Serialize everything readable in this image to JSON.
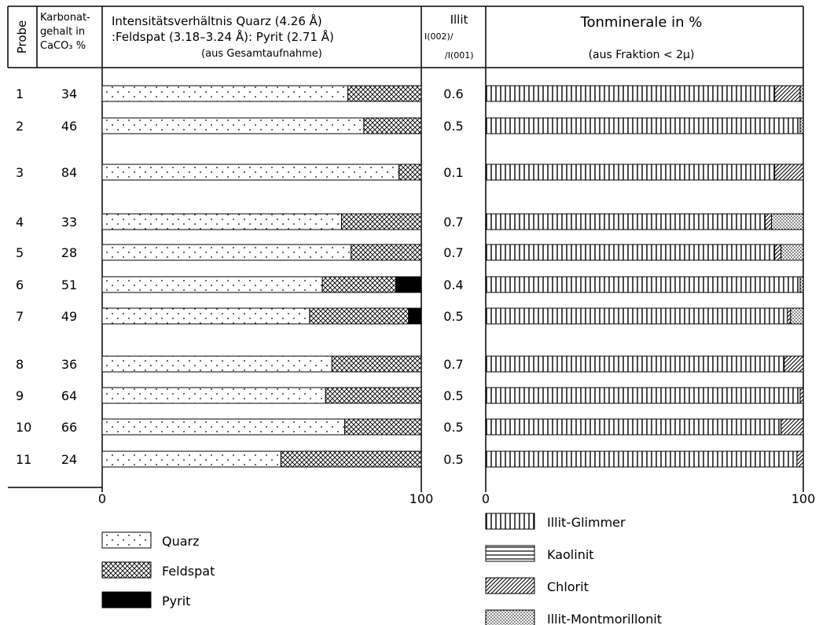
{
  "header": {
    "probe": "Probe",
    "karbonat": [
      "Karbonat-",
      "gehalt in",
      "CaCO₃ %"
    ],
    "intensity": [
      "Intensitätsverhältnis Quarz (4.26 Å)",
      ":Feldspat (3.18–3.24 Å): Pyrit (2.71 Å)",
      "(aus Gesamtaufnahme)"
    ],
    "illit_title": "Illit",
    "illit_num": "I(002)/",
    "illit_den": "/I(001)",
    "ton_title": "Tonminerale in %",
    "ton_sub": "(aus Fraktion < 2µ)"
  },
  "axis": {
    "left_ticks": [
      "0",
      "100"
    ],
    "right_ticks": [
      "0",
      "100"
    ]
  },
  "legend_left": [
    {
      "key": "quarz",
      "label": "Quarz"
    },
    {
      "key": "feldspat",
      "label": "Feldspat"
    },
    {
      "key": "pyrit",
      "label": "Pyrit"
    }
  ],
  "legend_right": [
    {
      "key": "illit",
      "label": "Illit-Glimmer"
    },
    {
      "key": "kaolinit",
      "label": "Kaolinit"
    },
    {
      "key": "chlorit",
      "label": "Chlorit"
    },
    {
      "key": "illmont",
      "label": "Illit-Montmorillonit"
    }
  ],
  "chart_data": [
    {
      "type": "bar",
      "orientation": "horizontal",
      "stacked": true,
      "xlim": [
        0,
        100
      ],
      "categories": [
        "1",
        "2",
        "3",
        "4",
        "5",
        "6",
        "7",
        "8",
        "9",
        "10",
        "11"
      ],
      "carbonate": [
        "34",
        "46",
        "84",
        "33",
        "28",
        "51",
        "49",
        "36",
        "64",
        "66",
        "24"
      ],
      "series": [
        {
          "name": "Quarz",
          "values": [
            77,
            82,
            93,
            75,
            78,
            69,
            65,
            72,
            70,
            76,
            56
          ]
        },
        {
          "name": "Feldspat",
          "values": [
            23,
            18,
            7,
            25,
            22,
            23,
            31,
            28,
            30,
            24,
            44
          ]
        },
        {
          "name": "Pyrit",
          "values": [
            0,
            0,
            0,
            0,
            0,
            8,
            4,
            0,
            0,
            0,
            0
          ]
        }
      ]
    },
    {
      "type": "table",
      "values": [
        "0.6",
        "0.5",
        "0.1",
        "0.7",
        "0.7",
        "0.4",
        "0.5",
        "0.7",
        "0.5",
        "0.5",
        "0.5"
      ]
    },
    {
      "type": "bar",
      "orientation": "horizontal",
      "stacked": true,
      "xlim": [
        0,
        100
      ],
      "categories": [
        "1",
        "2",
        "3",
        "4",
        "5",
        "6",
        "7",
        "8",
        "9",
        "10",
        "11"
      ],
      "series": [
        {
          "name": "Illit-Glimmer",
          "values": [
            91,
            99,
            91,
            88,
            91,
            99,
            95,
            94,
            99,
            93,
            98
          ]
        },
        {
          "name": "Kaolinit",
          "values": [
            0,
            0,
            0,
            0,
            0,
            0,
            0,
            0,
            0,
            0,
            0
          ]
        },
        {
          "name": "Chlorit",
          "values": [
            8,
            0,
            9,
            2,
            2,
            0,
            1,
            6,
            1,
            7,
            2
          ]
        },
        {
          "name": "Illit-Montmorillonit",
          "values": [
            1,
            1,
            0,
            10,
            7,
            1,
            4,
            0,
            0,
            0,
            0
          ]
        }
      ]
    }
  ]
}
